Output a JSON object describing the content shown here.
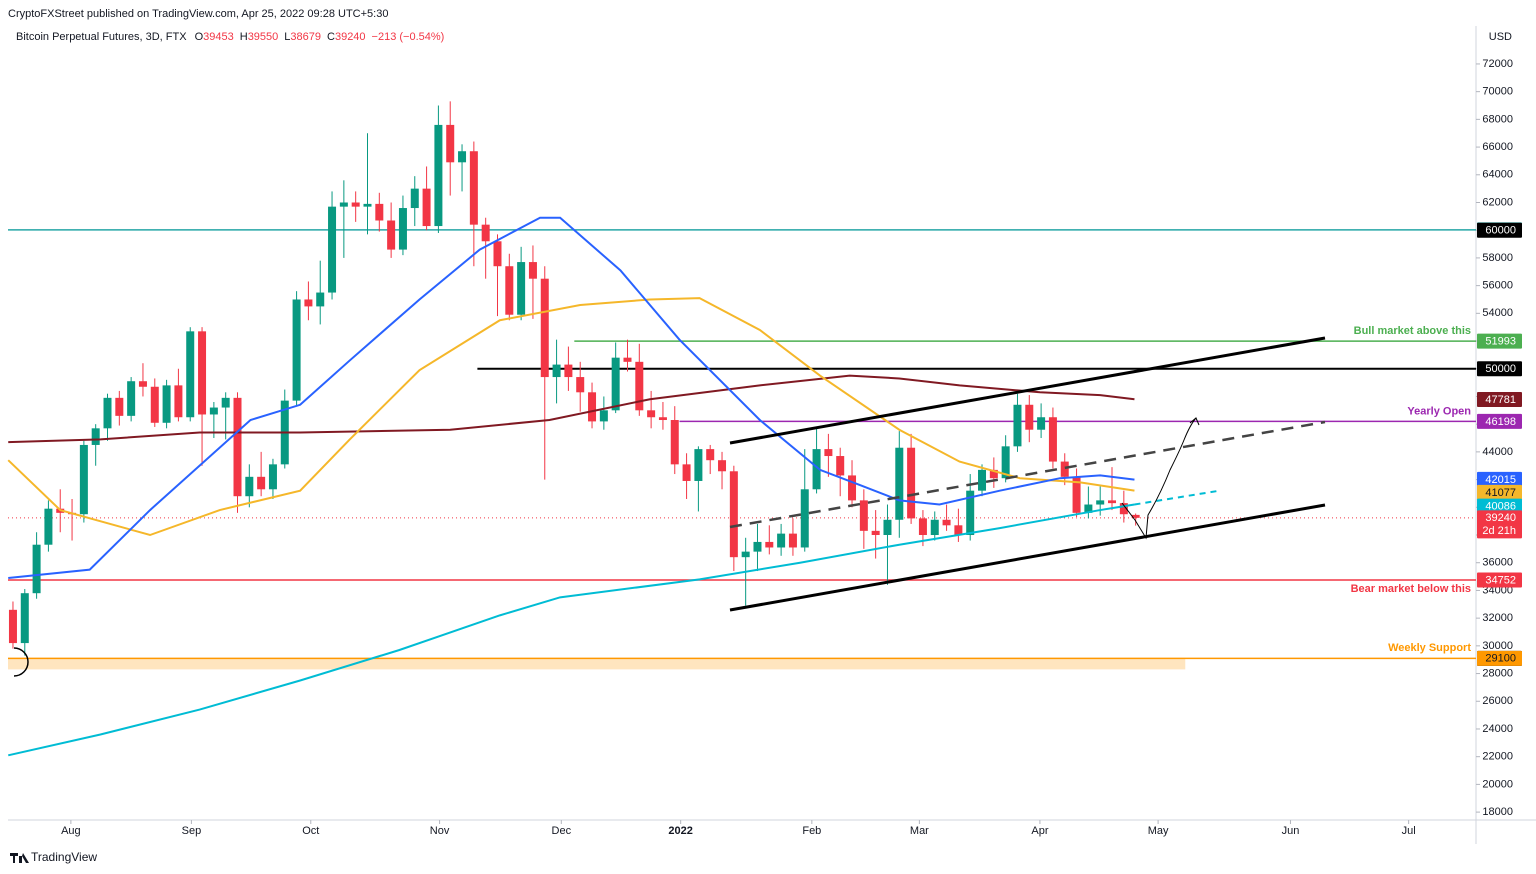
{
  "chart_data": {
    "type": "candlestick",
    "publisher": "CryptoFXStreet published on TradingView.com, Apr 25, 2022 09:28 UTC+5:30",
    "title": "Bitcoin Perpetual Futures, 3D, FTX",
    "ohlc_legend": [
      {
        "label": "O",
        "value": 39453
      },
      {
        "label": "H",
        "value": 39550
      },
      {
        "label": "L",
        "value": 38679
      },
      {
        "label": "C",
        "value": 39240
      }
    ],
    "change": "−213 (−0.54%)",
    "currency": "USD",
    "brand": "TradingView",
    "up_color": "#089981",
    "down_color": "#f23645",
    "xlim": [
      -0.42,
      123.8
    ],
    "xticks": [
      {
        "value": 4.9,
        "label": "Aug"
      },
      {
        "value": 15.1,
        "label": "Sep"
      },
      {
        "value": 25.2,
        "label": "Oct"
      },
      {
        "value": 36.1,
        "label": "Nov"
      },
      {
        "value": 46.4,
        "label": "Dec"
      },
      {
        "value": 56.5,
        "label": "2022"
      },
      {
        "value": 67.6,
        "label": "Feb"
      },
      {
        "value": 76.7,
        "label": "Mar"
      },
      {
        "value": 86.9,
        "label": "Apr"
      },
      {
        "value": 96.9,
        "label": "May"
      },
      {
        "value": 108.1,
        "label": "Jun"
      },
      {
        "value": 118.1,
        "label": "Jul"
      }
    ],
    "ylim": [
      17430,
      74450
    ],
    "yticks": [
      18000,
      20000,
      22000,
      24000,
      26000,
      28000,
      30000,
      32000,
      34000,
      36000,
      38000,
      40000,
      42000,
      44000,
      46000,
      48000,
      50000,
      52000,
      54000,
      56000,
      58000,
      60000,
      62000,
      64000,
      66000,
      68000,
      70000,
      72000
    ],
    "ohlc": [
      [
        32600,
        33200,
        29800,
        30200
      ],
      [
        30200,
        34100,
        29300,
        33800
      ],
      [
        33800,
        38200,
        33400,
        37300
      ],
      [
        37300,
        40500,
        36800,
        39900
      ],
      [
        39900,
        41300,
        38200,
        39600
      ],
      [
        39600,
        40600,
        37600,
        39500
      ],
      [
        39500,
        44800,
        38900,
        44500
      ],
      [
        44500,
        46000,
        43000,
        45700
      ],
      [
        45700,
        48200,
        44800,
        47900
      ],
      [
        47900,
        48400,
        45900,
        46600
      ],
      [
        46600,
        49400,
        46200,
        49100
      ],
      [
        49100,
        50400,
        48000,
        48700
      ],
      [
        48700,
        49300,
        45800,
        46100
      ],
      [
        46100,
        49200,
        45700,
        48800
      ],
      [
        48800,
        50000,
        46200,
        46500
      ],
      [
        46500,
        53000,
        46200,
        52700
      ],
      [
        52700,
        53000,
        43000,
        46700
      ],
      [
        46700,
        47600,
        45000,
        47200
      ],
      [
        47200,
        48300,
        44900,
        47900
      ],
      [
        47900,
        48300,
        39600,
        40800
      ],
      [
        40800,
        43100,
        40000,
        42200
      ],
      [
        42200,
        44000,
        40800,
        41300
      ],
      [
        41300,
        43500,
        40600,
        43100
      ],
      [
        43100,
        48500,
        42800,
        47700
      ],
      [
        47700,
        55600,
        47300,
        55000
      ],
      [
        55000,
        56300,
        53500,
        54500
      ],
      [
        54500,
        57800,
        53200,
        55500
      ],
      [
        55500,
        62800,
        55000,
        61700
      ],
      [
        61700,
        63600,
        58000,
        62000
      ],
      [
        62000,
        62800,
        60600,
        61700
      ],
      [
        61700,
        67000,
        59700,
        61900
      ],
      [
        61900,
        62700,
        59900,
        60700
      ],
      [
        60700,
        62000,
        58000,
        58600
      ],
      [
        58600,
        62500,
        58200,
        61600
      ],
      [
        61600,
        63900,
        60300,
        63000
      ],
      [
        63000,
        64600,
        60000,
        60300
      ],
      [
        60300,
        69000,
        59800,
        67600
      ],
      [
        67600,
        69300,
        62500,
        64900
      ],
      [
        64900,
        66200,
        62800,
        65700
      ],
      [
        65700,
        66400,
        57400,
        60400
      ],
      [
        60400,
        60900,
        56500,
        59200
      ],
      [
        59200,
        59700,
        53800,
        57400
      ],
      [
        57400,
        58300,
        53500,
        53900
      ],
      [
        53900,
        58800,
        53500,
        57700
      ],
      [
        57700,
        58900,
        53600,
        56500
      ],
      [
        56500,
        57400,
        42000,
        49400
      ],
      [
        49400,
        52100,
        47500,
        50300
      ],
      [
        50300,
        51600,
        48400,
        49400
      ],
      [
        49400,
        50500,
        46900,
        48300
      ],
      [
        48300,
        49000,
        45700,
        46200
      ],
      [
        46200,
        48000,
        45600,
        47000
      ],
      [
        47000,
        51900,
        46800,
        50800
      ],
      [
        50800,
        52100,
        49800,
        50500
      ],
      [
        50500,
        51800,
        46600,
        47000
      ],
      [
        47000,
        48400,
        45700,
        46500
      ],
      [
        46500,
        47600,
        45600,
        46300
      ],
      [
        46300,
        47300,
        42400,
        43100
      ],
      [
        43100,
        43900,
        40600,
        41900
      ],
      [
        41900,
        44400,
        39700,
        44200
      ],
      [
        44200,
        44500,
        42400,
        43400
      ],
      [
        43400,
        44000,
        41300,
        42600
      ],
      [
        42600,
        43000,
        35400,
        36400
      ],
      [
        36400,
        37800,
        32900,
        36800
      ],
      [
        36800,
        38800,
        35400,
        37500
      ],
      [
        37500,
        38700,
        36600,
        37100
      ],
      [
        37100,
        38800,
        36500,
        38100
      ],
      [
        38100,
        39200,
        36500,
        37100
      ],
      [
        37100,
        44200,
        36800,
        41300
      ],
      [
        41300,
        45800,
        41000,
        44200
      ],
      [
        44200,
        45300,
        42200,
        43700
      ],
      [
        43700,
        44300,
        40800,
        42300
      ],
      [
        42300,
        43400,
        40000,
        40500
      ],
      [
        40500,
        41300,
        37000,
        38300
      ],
      [
        38300,
        39800,
        36300,
        38000
      ],
      [
        38000,
        40200,
        34400,
        39100
      ],
      [
        39100,
        45500,
        37800,
        44300
      ],
      [
        44300,
        45300,
        38800,
        39200
      ],
      [
        39200,
        39800,
        37200,
        38000
      ],
      [
        38000,
        39700,
        37600,
        39100
      ],
      [
        39100,
        40200,
        38300,
        38700
      ],
      [
        38700,
        39900,
        37500,
        38000
      ],
      [
        38000,
        42400,
        37600,
        41200
      ],
      [
        41200,
        43100,
        40800,
        42700
      ],
      [
        42700,
        43600,
        41400,
        42100
      ],
      [
        42100,
        45200,
        41800,
        44400
      ],
      [
        44400,
        48200,
        44000,
        47400
      ],
      [
        47400,
        48100,
        44700,
        45600
      ],
      [
        45600,
        47500,
        45000,
        46500
      ],
      [
        46500,
        47200,
        42800,
        43300
      ],
      [
        43300,
        43900,
        41600,
        42200
      ],
      [
        42200,
        42800,
        39300,
        39600
      ],
      [
        39600,
        41500,
        39200,
        40200
      ],
      [
        40200,
        41500,
        39400,
        40500
      ],
      [
        40500,
        42900,
        39800,
        40300
      ],
      [
        40300,
        41200,
        38900,
        39500
      ],
      [
        39453,
        39550,
        38679,
        39240
      ]
    ],
    "lines": [
      {
        "color": "#00bcd4",
        "x": [
          -0.4,
          7.4,
          15.8,
          24.3,
          32.7,
          41.2,
          46.3,
          58.1,
          66.6,
          75,
          83.5,
          92,
          94.9
        ],
        "values": [
          22100,
          23600,
          25400,
          27500,
          29700,
          32200,
          33500,
          34800,
          36000,
          37300,
          38500,
          39800,
          40200
        ]
      },
      {
        "color": "#00bcd4",
        "dashed": true,
        "x": [
          94.9,
          102.1
        ],
        "values": [
          40200,
          41200
        ]
      },
      {
        "color": "#801922",
        "x": [
          -0.4,
          7.4,
          15.8,
          24.3,
          37,
          45.4,
          53.9,
          63.2,
          70.8,
          75,
          80.1,
          86.9,
          92,
          94.9
        ],
        "values": [
          44700,
          44900,
          45400,
          45400,
          45600,
          46300,
          47800,
          48800,
          49500,
          49300,
          48800,
          48300,
          48100,
          47800
        ]
      },
      {
        "color": "#f5b72a",
        "x": [
          -0.4,
          4,
          11.6,
          17.5,
          24.3,
          28.5,
          34.4,
          41.2,
          48,
          53.9,
          58.1,
          63.2,
          68.3,
          75,
          80.1,
          85.2,
          90.3,
          94.9
        ],
        "values": [
          43400,
          39800,
          38000,
          39800,
          41200,
          44900,
          49900,
          53500,
          54600,
          55000,
          55100,
          52800,
          49500,
          45600,
          43300,
          42100,
          41800,
          41200
        ]
      },
      {
        "color": "#2962ff",
        "x": [
          -0.4,
          6.5,
          11.6,
          20.1,
          24.3,
          28.5,
          34.4,
          39.5,
          44.6,
          46.3,
          51.4,
          56.4,
          63.2,
          68.3,
          71.7,
          75,
          78.4,
          83.5,
          88.6,
          92,
          94.9
        ],
        "values": [
          34900,
          35500,
          39800,
          46300,
          47400,
          50600,
          55000,
          58600,
          60900,
          60900,
          57100,
          52100,
          46300,
          42700,
          41600,
          40500,
          40200,
          41200,
          42100,
          42300,
          42000
        ]
      }
    ],
    "levels": [
      {
        "value": 60028,
        "color": "#26a6a6",
        "line_from": -0.42
      },
      {
        "value": 60000,
        "color": "#000000"
      },
      {
        "value": 51993,
        "color": "#4caf50",
        "line_from": 47.5,
        "text": "Bull market above this"
      },
      {
        "value": 50000,
        "color": "#000000",
        "line_from": 39.3
      },
      {
        "value": 47781,
        "color": "#801922"
      },
      {
        "value": 46198,
        "color": "#9c27b0",
        "line_from": 56.4,
        "text": "Yearly Open"
      },
      {
        "value": 42015,
        "color": "#2962ff"
      },
      {
        "value": 41077,
        "color": "#f5b72a"
      },
      {
        "value": 40086,
        "color": "#00bcd4"
      },
      {
        "value": 39240,
        "color": "#f23645",
        "line_from": -0.42,
        "dotted": true,
        "countdown": "2d 21h"
      },
      {
        "value": 34752,
        "color": "#f23645",
        "line_from": -0.42,
        "text": "Bear market below this",
        "text_below": true
      },
      {
        "value": 29100,
        "color": "#000000"
      },
      {
        "value": 29100,
        "color": "#ff9800",
        "line_from": -0.42,
        "text": "Weekly Support",
        "band_low": 28300,
        "band_until": 99.2
      }
    ]
  }
}
